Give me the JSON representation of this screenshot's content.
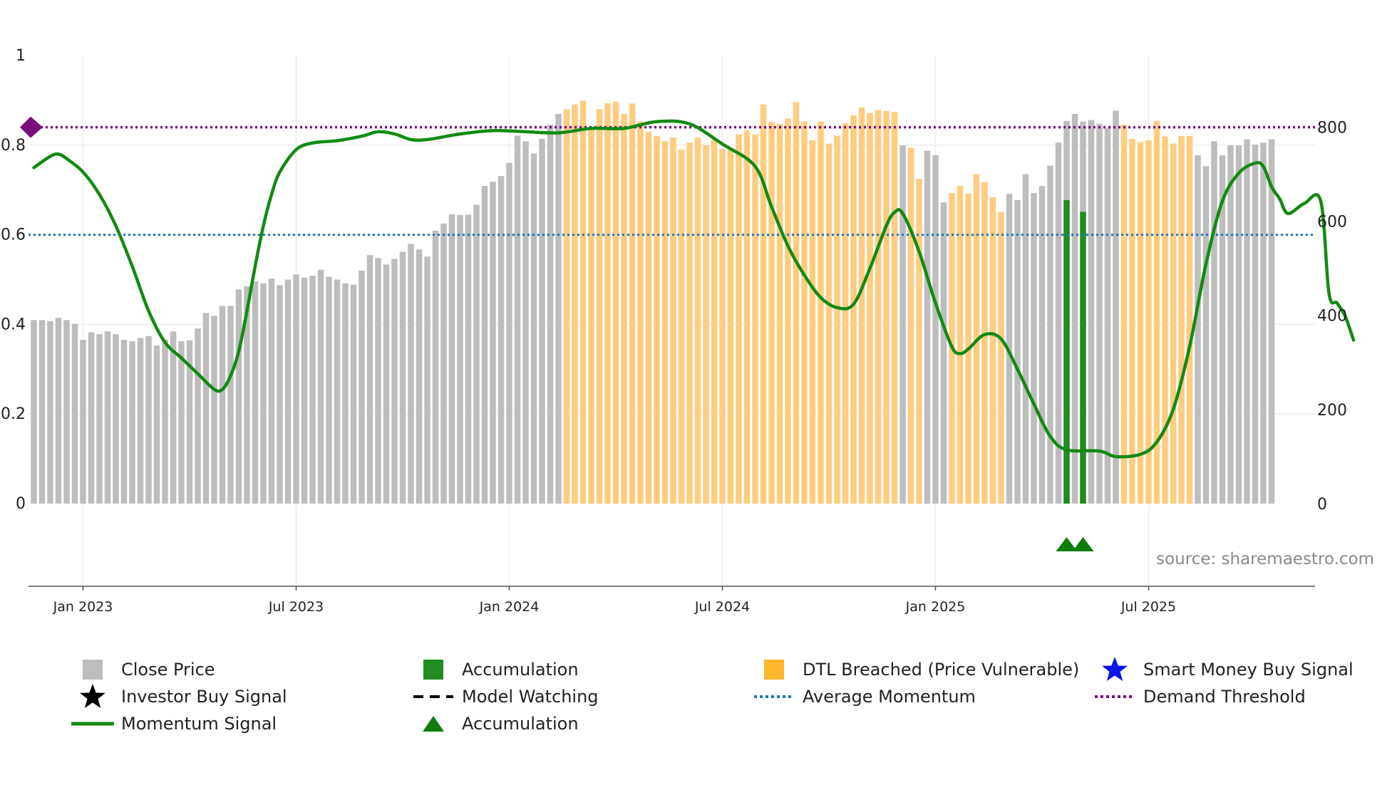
{
  "chart_data": {
    "type": "bar+line",
    "title": "",
    "left_axis": {
      "ylim": [
        0,
        1
      ],
      "ticks": [
        "0",
        "0.2",
        "0.4",
        "0.6",
        "0.8",
        "1"
      ]
    },
    "right_axis": {
      "ylim": [
        0,
        952
      ],
      "ticks": [
        "0",
        "200",
        "400",
        "600",
        "800"
      ]
    },
    "x_ticks": [
      "Jan 2023",
      "Jul 2023",
      "Jan 2024",
      "Jul 2024",
      "Jan 2025",
      "Jul 2025"
    ],
    "x_range": [
      "Nov 2022",
      "Oct 2025"
    ],
    "close_price_weekly": [
      390,
      390,
      388,
      395,
      390,
      382,
      348,
      364,
      360,
      366,
      360,
      348,
      345,
      352,
      356,
      336,
      348,
      366,
      345,
      347,
      372,
      405,
      399,
      420,
      420,
      455,
      462,
      472,
      468,
      478,
      464,
      476,
      487,
      480,
      484,
      497,
      482,
      476,
      468,
      465,
      495,
      528,
      522,
      508,
      520,
      535,
      552,
      540,
      525,
      580,
      595,
      615,
      613,
      614,
      635,
      675,
      684,
      696,
      724,
      782,
      770,
      744,
      775,
      805,
      828,
      838,
      848,
      856,
      800,
      838,
      851,
      854,
      828,
      850,
      812,
      790,
      781,
      770,
      778,
      752,
      767,
      778,
      762,
      773,
      754,
      756,
      785,
      793,
      784,
      848,
      811,
      807,
      818,
      853,
      812,
      772,
      812,
      765,
      782,
      808,
      825,
      842,
      830,
      836,
      834,
      832,
      761,
      756,
      690,
      750,
      740,
      640,
      660,
      675,
      659,
      700,
      683,
      651,
      620,
      658,
      645,
      700,
      660,
      675,
      718,
      767,
      813,
      828,
      812,
      815,
      807,
      798,
      835,
      805,
      775,
      768,
      772,
      813,
      780,
      765,
      781,
      781,
      740,
      717,
      770,
      740,
      761,
      761,
      774,
      763,
      767,
      774
    ],
    "dtl_breached_weeks": [
      [
        65,
        105
      ],
      [
        107,
        108
      ],
      [
        112,
        118
      ],
      [
        133,
        141
      ]
    ],
    "accumulation_bars": [
      {
        "week": 126,
        "value": 645
      },
      {
        "week": 128,
        "value": 620
      }
    ],
    "momentum_signal": [
      [
        0,
        0.75
      ],
      [
        2,
        0.775
      ],
      [
        3,
        0.78
      ],
      [
        4,
        0.77
      ],
      [
        6,
        0.74
      ],
      [
        8,
        0.69
      ],
      [
        10,
        0.62
      ],
      [
        12,
        0.53
      ],
      [
        14,
        0.43
      ],
      [
        16,
        0.36
      ],
      [
        18,
        0.325
      ],
      [
        20,
        0.29
      ],
      [
        22,
        0.255
      ],
      [
        23,
        0.255
      ],
      [
        24,
        0.285
      ],
      [
        25,
        0.34
      ],
      [
        26,
        0.43
      ],
      [
        27,
        0.53
      ],
      [
        28,
        0.62
      ],
      [
        29,
        0.69
      ],
      [
        30,
        0.74
      ],
      [
        32,
        0.79
      ],
      [
        34,
        0.805
      ],
      [
        37,
        0.81
      ],
      [
        40,
        0.82
      ],
      [
        42,
        0.83
      ],
      [
        44,
        0.825
      ],
      [
        46,
        0.8125
      ],
      [
        48,
        0.8125
      ],
      [
        52,
        0.825
      ],
      [
        56,
        0.8325
      ],
      [
        60,
        0.83
      ],
      [
        64,
        0.8275
      ],
      [
        68,
        0.8375
      ],
      [
        72,
        0.8375
      ],
      [
        76,
        0.8525
      ],
      [
        80,
        0.8475
      ],
      [
        84,
        0.8025
      ],
      [
        88,
        0.7525
      ],
      [
        90,
        0.6625
      ],
      [
        92,
        0.575
      ],
      [
        94,
        0.51
      ],
      [
        96,
        0.46
      ],
      [
        98,
        0.4375
      ],
      [
        100,
        0.445
      ],
      [
        102,
        0.525
      ],
      [
        104,
        0.62
      ],
      [
        105,
        0.65
      ],
      [
        106,
        0.6475
      ],
      [
        108,
        0.5625
      ],
      [
        110,
        0.4475
      ],
      [
        112,
        0.35
      ],
      [
        113,
        0.335
      ],
      [
        114,
        0.345
      ],
      [
        116,
        0.3775
      ],
      [
        118,
        0.3675
      ],
      [
        120,
        0.3
      ],
      [
        122,
        0.2225
      ],
      [
        124,
        0.15
      ],
      [
        126,
        0.12
      ],
      [
        130,
        0.1175
      ],
      [
        132,
        0.105
      ],
      [
        135,
        0.11
      ],
      [
        137,
        0.1375
      ],
      [
        139,
        0.21
      ],
      [
        141,
        0.35
      ],
      [
        143,
        0.535
      ],
      [
        145,
        0.675
      ],
      [
        147,
        0.7375
      ],
      [
        149,
        0.76
      ],
      [
        150,
        0.7525
      ],
      [
        151,
        0.7075
      ],
      [
        152,
        0.68
      ],
      [
        153,
        0.6475
      ],
      [
        155,
        0.67
      ],
      [
        157,
        0.675
      ],
      [
        158,
        0.47
      ],
      [
        159,
        0.4475
      ],
      [
        160,
        0.4175
      ],
      [
        161,
        0.365
      ]
    ],
    "average_momentum": 0.6,
    "demand_threshold": 0.84,
    "accumulation_markers": [
      "week 126",
      "week 128"
    ],
    "source": "source: sharemaestro.com",
    "legend": [
      "Close Price",
      "Accumulation",
      "DTL Breached (Price Vulnerable)",
      "Smart Money Buy Signal",
      "Investor Buy Signal",
      "Model Watching",
      "Average Momentum",
      "Demand Threshold",
      "Momentum Signal",
      "Accumulation"
    ],
    "colors": {
      "close_price": "#bdbdbd",
      "dtl_breached": "#ffcc80",
      "accumulation": "#228b22",
      "momentum": "#128a12",
      "average_momentum": "#1f77b4",
      "demand_threshold": "#7b0f7b",
      "smart_money": "#0a14e6",
      "investor": "#000000"
    }
  },
  "legend_labels": {
    "close_price": "Close Price",
    "accumulation_bar": "Accumulation",
    "dtl_breached": "DTL Breached (Price Vulnerable)",
    "smart_money": "Smart Money Buy Signal",
    "investor_buy": "Investor Buy Signal",
    "model_watching": "Model Watching",
    "average_momentum": "Average Momentum",
    "demand_threshold": "Demand Threshold",
    "momentum_signal": "Momentum Signal",
    "accumulation_marker": "Accumulation"
  }
}
